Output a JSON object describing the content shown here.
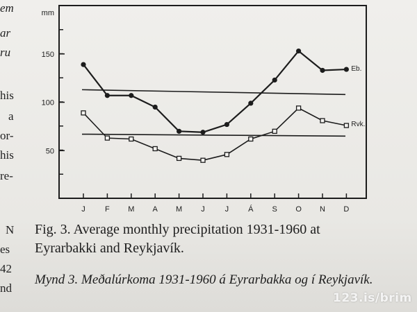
{
  "left_margin": {
    "fragments": [
      "em",
      "ar",
      "ru",
      "his",
      "a",
      "or-",
      "his",
      "re-",
      "N",
      "es",
      "42",
      "nd"
    ]
  },
  "chart_data": {
    "type": "line",
    "unit": "mm",
    "categories": [
      "J",
      "F",
      "M",
      "A",
      "M",
      "J",
      "J",
      "Á",
      "S",
      "O",
      "N",
      "D"
    ],
    "ylim": [
      0,
      160
    ],
    "yticks": [
      50,
      100,
      150
    ],
    "series": [
      {
        "name": "Eb.",
        "marker": "filled-circle",
        "values": [
          139,
          107,
          107,
          95,
          70,
          69,
          77,
          99,
          123,
          153,
          133,
          134
        ]
      },
      {
        "name": "Rvk.",
        "marker": "open-square",
        "values": [
          89,
          63,
          62,
          52,
          42,
          40,
          46,
          62,
          70,
          94,
          81,
          76
        ]
      }
    ],
    "reference_lines": [
      {
        "series": "Eb.",
        "from": 113,
        "to": 108
      },
      {
        "series": "Rvk.",
        "from": 67,
        "to": 65
      }
    ]
  },
  "caption": {
    "english": "Fig. 3. Average monthly precipitation 1931-1960 at Eyrarbakki and Reykjavík.",
    "icelandic": "Mynd 3. Meðalúrkoma 1931-1960 á Eyrarbakka og í Reykjavík."
  },
  "watermark": "123.is/brim"
}
